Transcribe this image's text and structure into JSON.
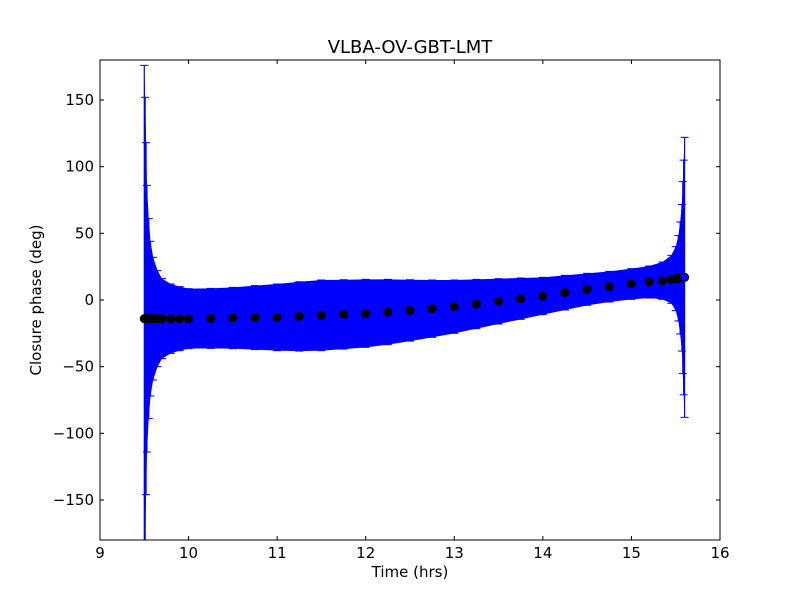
{
  "chart_data": {
    "type": "scatter",
    "title": "VLBA-OV-GBT-LMT",
    "xlabel": "Time (hrs)",
    "ylabel": "Closure phase (deg)",
    "xlim": [
      9,
      16
    ],
    "ylim": [
      -180,
      180
    ],
    "xticks": [
      9,
      10,
      11,
      12,
      13,
      14,
      15,
      16
    ],
    "yticks": [
      -150,
      -100,
      -50,
      0,
      50,
      100,
      150
    ],
    "ytick_labels": [
      "−150",
      "−100",
      "−50",
      "0",
      "50",
      "100",
      "150"
    ],
    "grid": false,
    "series": [
      {
        "name": "closure phase",
        "marker_color": "#000000",
        "errorbar_color": "#0000ff",
        "x": [
          9.5,
          9.51,
          9.52,
          9.53,
          9.55,
          9.57,
          9.6,
          9.65,
          9.7,
          9.8,
          9.9,
          10.0,
          10.25,
          10.5,
          10.75,
          11.0,
          11.25,
          11.5,
          11.75,
          12.0,
          12.25,
          12.5,
          12.75,
          13.0,
          13.25,
          13.5,
          13.75,
          14.0,
          14.25,
          14.5,
          14.75,
          15.0,
          15.2,
          15.35,
          15.45,
          15.5,
          15.53,
          15.55,
          15.57,
          15.58,
          15.59,
          15.6
        ],
        "y": [
          -14,
          -14,
          -14,
          -14,
          -14,
          -14,
          -14,
          -14,
          -14,
          -14,
          -14,
          -14,
          -13.8,
          -13.5,
          -13.2,
          -13,
          -12.3,
          -11.5,
          -10.8,
          -10,
          -9,
          -7.8,
          -6.5,
          -5,
          -3,
          -1,
          1,
          3,
          5.5,
          8,
          10,
          12,
          13.5,
          14.5,
          15.5,
          16,
          16.3,
          16.5,
          16.7,
          16.8,
          16.9,
          17
        ],
        "err": [
          190,
          166,
          132,
          100,
          75,
          58,
          46,
          36,
          30,
          26,
          24,
          22.5,
          22.5,
          23,
          24,
          25,
          26,
          26.5,
          26,
          25.5,
          24.5,
          23,
          21.5,
          20,
          18.5,
          17,
          15.5,
          14,
          13,
          12,
          11.5,
          11.5,
          12,
          14,
          18,
          24,
          32,
          42,
          55,
          72,
          88,
          105
        ]
      }
    ]
  }
}
